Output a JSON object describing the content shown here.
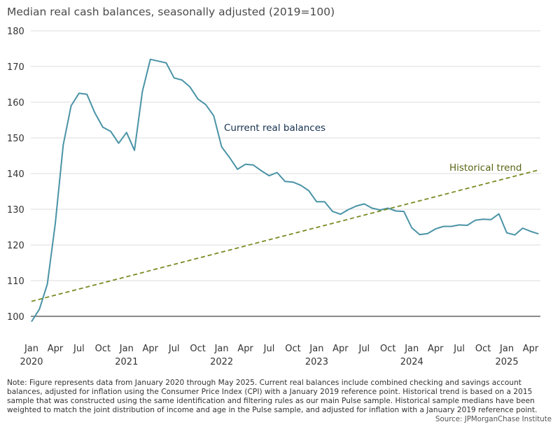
{
  "chart_data": {
    "type": "line",
    "title": "Median real cash balances, seasonally adjusted (2019=100)",
    "xlabel": "",
    "ylabel": "",
    "ylim": [
      100,
      180
    ],
    "yticks": [
      100,
      110,
      120,
      130,
      140,
      150,
      160,
      170,
      180
    ],
    "grid": true,
    "legend": "none",
    "x_tick_months": [
      "Jan",
      "Apr",
      "Jul",
      "Oct",
      "Jan",
      "Apr",
      "Jul",
      "Oct",
      "Jan",
      "Apr",
      "Jul",
      "Oct",
      "Jan",
      "Apr",
      "Jul",
      "Oct",
      "Jan",
      "Apr",
      "Jul",
      "Oct",
      "Jan",
      "Apr"
    ],
    "x_tick_years": [
      "2020",
      "2021",
      "2022",
      "2023",
      "2024",
      "2025"
    ],
    "x_start": "2020-01",
    "x_end": "2025-05",
    "series": [
      {
        "name": "Current real balances",
        "color": "#4a93a6",
        "style": "solid",
        "values": [
          98.5,
          102,
          109,
          126,
          148,
          159,
          162.5,
          162.2,
          157,
          153,
          151.8,
          148.5,
          151.5,
          146.5,
          163,
          172,
          171.5,
          171,
          166.8,
          166.2,
          164.3,
          160.9,
          159.3,
          156.2,
          147.5,
          144.5,
          141.2,
          142.6,
          142.4,
          140.8,
          139.4,
          140.3,
          137.8,
          137.6,
          136.7,
          135.2,
          132.1,
          132.1,
          129.4,
          128.6,
          129.9,
          130.9,
          131.5,
          130.3,
          129.8,
          130.3,
          129.5,
          129.4,
          124.8,
          122.9,
          123.2,
          124.5,
          125.2,
          125.2,
          125.6,
          125.5,
          126.9,
          127.2,
          127.1,
          128.7,
          123.4,
          122.8,
          124.7,
          123.8,
          123.1
        ]
      },
      {
        "name": "Historical trend",
        "color": "#7a8a22",
        "style": "dashed",
        "values_linear_endpoints": {
          "start": 104.2,
          "end": 141
        }
      }
    ]
  },
  "note": "Note: Figure represents data from January 2020 through May 2025. Current real balances include combined checking and savings account balances, adjusted for inflation using the Consumer Price Index (CPI) with a January 2019 reference point. Historical trend is based on a 2015 sample that was constructed using the same identification and filtering rules as our main Pulse sample. Historical sample medians have been weighted to match the joint distribution of income and age in the Pulse sample, and adjusted for inflation with a January 2019 reference point.",
  "source": "Source: JPMorganChase Institute"
}
